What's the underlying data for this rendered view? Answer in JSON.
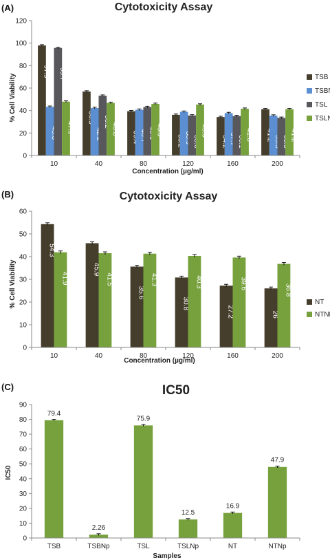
{
  "chart_data": [
    {
      "type": "bar",
      "panel": "(A)",
      "title": "Cytotoxicity Assay",
      "xlabel": "Concentration (µg/ml)",
      "ylabel": "% Cell Viability",
      "ylim": [
        0,
        120
      ],
      "yticks": [
        0,
        20,
        40,
        60,
        80,
        100,
        120
      ],
      "categories": [
        "10",
        "40",
        "80",
        "120",
        "160",
        "200"
      ],
      "series": [
        {
          "name": "TSB",
          "color": "#463e2c",
          "values": [
            97.9,
            56.9,
            39.4,
            36.2,
            34.2,
            41.2
          ]
        },
        {
          "name": "TSBNP",
          "color": "#5b8fd1",
          "values": [
            43.3,
            42.2,
            40.7,
            38.9,
            37.7,
            35.5
          ]
        },
        {
          "name": "TSL",
          "color": "#57575c",
          "values": [
            95.7,
            53.2,
            43.1,
            35.6,
            35.1,
            33.5
          ]
        },
        {
          "name": "TSLNP",
          "color": "#77a13d",
          "values": [
            47.9,
            46.8,
            45.9,
            45.3,
            41.6,
            41.2
          ]
        }
      ],
      "value_labels": [
        [
          "97.9",
          "56.9",
          "39.4",
          "36.2",
          "34.2",
          "41.2"
        ],
        [
          "43.3",
          "42.2",
          "40.7",
          "38.9",
          "37.7",
          "35.5"
        ],
        [
          "95.7",
          "53.2",
          "43.1",
          "35.6",
          "35.1",
          "33.5"
        ],
        [
          "47.9",
          "46.8",
          "45.9",
          "45.3",
          "41.6",
          "41.2"
        ]
      ],
      "legend": "right",
      "grid": false,
      "error_bars": true
    },
    {
      "type": "bar",
      "panel": "(B)",
      "title": "Cytotoxicity Assay",
      "xlabel": "Concentration (µg/ml)",
      "ylabel": "% Cell Viability",
      "ylim": [
        0,
        60
      ],
      "yticks": [
        0,
        10,
        20,
        30,
        40,
        50,
        60
      ],
      "categories": [
        "10",
        "40",
        "80",
        "120",
        "160",
        "200"
      ],
      "series": [
        {
          "name": "NT",
          "color": "#463e2c",
          "values": [
            54.3,
            45.9,
            35.6,
            30.8,
            27.2,
            26
          ]
        },
        {
          "name": "NTNP",
          "color": "#77a13d",
          "values": [
            41.9,
            41.5,
            41.3,
            40.3,
            39.6,
            36.8
          ]
        }
      ],
      "value_labels": [
        [
          "54.3",
          "45.9",
          "35.6",
          "30.8",
          "27.2",
          "26"
        ],
        [
          "41.9",
          "41.5",
          "41.3",
          "40.3",
          "39.6",
          "36.8"
        ]
      ],
      "legend": "right",
      "grid": false,
      "error_bars": true
    },
    {
      "type": "bar",
      "panel": "(C)",
      "title": "IC50",
      "xlabel": "Samples",
      "ylabel": "IC50",
      "ylim": [
        0,
        90
      ],
      "yticks": [
        0,
        10,
        20,
        30,
        40,
        50,
        60,
        70,
        80,
        90
      ],
      "categories": [
        "TSB",
        "TSBNp",
        "TSL",
        "TSLNp",
        "NT",
        "NTNp"
      ],
      "series": [
        {
          "color": "#77a13d",
          "values": [
            79.4,
            2.26,
            75.9,
            12.5,
            16.9,
            47.9
          ]
        }
      ],
      "value_labels": [
        [
          "79.4",
          "2.26",
          "75.9",
          "12.5",
          "16.9",
          "47.9"
        ]
      ],
      "legend": "none",
      "grid": false,
      "error_bars": true
    }
  ]
}
